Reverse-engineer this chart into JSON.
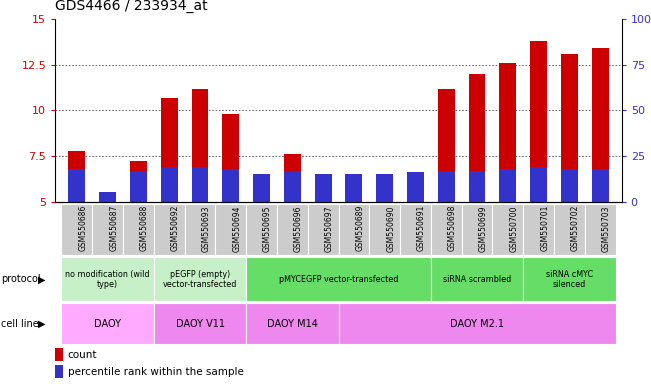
{
  "title": "GDS4466 / 233934_at",
  "samples": [
    "GSM550686",
    "GSM550687",
    "GSM550688",
    "GSM550692",
    "GSM550693",
    "GSM550694",
    "GSM550695",
    "GSM550696",
    "GSM550697",
    "GSM550689",
    "GSM550690",
    "GSM550691",
    "GSM550698",
    "GSM550699",
    "GSM550700",
    "GSM550701",
    "GSM550702",
    "GSM550703"
  ],
  "count_values": [
    7.8,
    5.3,
    7.2,
    10.7,
    11.2,
    9.8,
    6.3,
    7.6,
    6.3,
    6.1,
    6.2,
    6.5,
    11.2,
    12.0,
    12.6,
    13.8,
    13.1,
    13.4
  ],
  "percentile_pct": [
    18,
    5,
    17,
    19,
    19,
    18,
    15,
    17,
    15,
    15,
    15,
    16,
    17,
    17,
    18,
    19,
    18,
    18
  ],
  "bar_color": "#cc0000",
  "percentile_color": "#3333cc",
  "ylim_left": [
    5,
    15
  ],
  "ylim_right": [
    0,
    100
  ],
  "yticks_left": [
    5.0,
    7.5,
    10.0,
    12.5,
    15.0
  ],
  "ytick_labels_left": [
    "5",
    "7.5",
    "10",
    "12.5",
    "15"
  ],
  "yticks_right": [
    0,
    25,
    50,
    75,
    100
  ],
  "ytick_labels_right": [
    "0",
    "25",
    "50",
    "75",
    "100%"
  ],
  "protocol_groups": [
    {
      "label": "no modification (wild\ntype)",
      "start": 0,
      "end": 3,
      "color": "#c8f0c8"
    },
    {
      "label": "pEGFP (empty)\nvector-transfected",
      "start": 3,
      "end": 6,
      "color": "#c8f0c8"
    },
    {
      "label": "pMYCEGFP vector-transfected",
      "start": 6,
      "end": 12,
      "color": "#66dd66"
    },
    {
      "label": "siRNA scrambled",
      "start": 12,
      "end": 15,
      "color": "#66dd66"
    },
    {
      "label": "siRNA cMYC\nsilenced",
      "start": 15,
      "end": 18,
      "color": "#66dd66"
    }
  ],
  "cellline_groups": [
    {
      "label": "DAOY",
      "start": 0,
      "end": 3,
      "color": "#ffaaff"
    },
    {
      "label": "DAOY V11",
      "start": 3,
      "end": 6,
      "color": "#ee88ee"
    },
    {
      "label": "DAOY M14",
      "start": 6,
      "end": 9,
      "color": "#ee88ee"
    },
    {
      "label": "DAOY M2.1",
      "start": 9,
      "end": 18,
      "color": "#ee88ee"
    }
  ],
  "tick_bg_color": "#cccccc",
  "tick_border_color": "#ffffff",
  "title_fontsize": 10,
  "tick_fontsize": 6,
  "bar_width": 0.55
}
